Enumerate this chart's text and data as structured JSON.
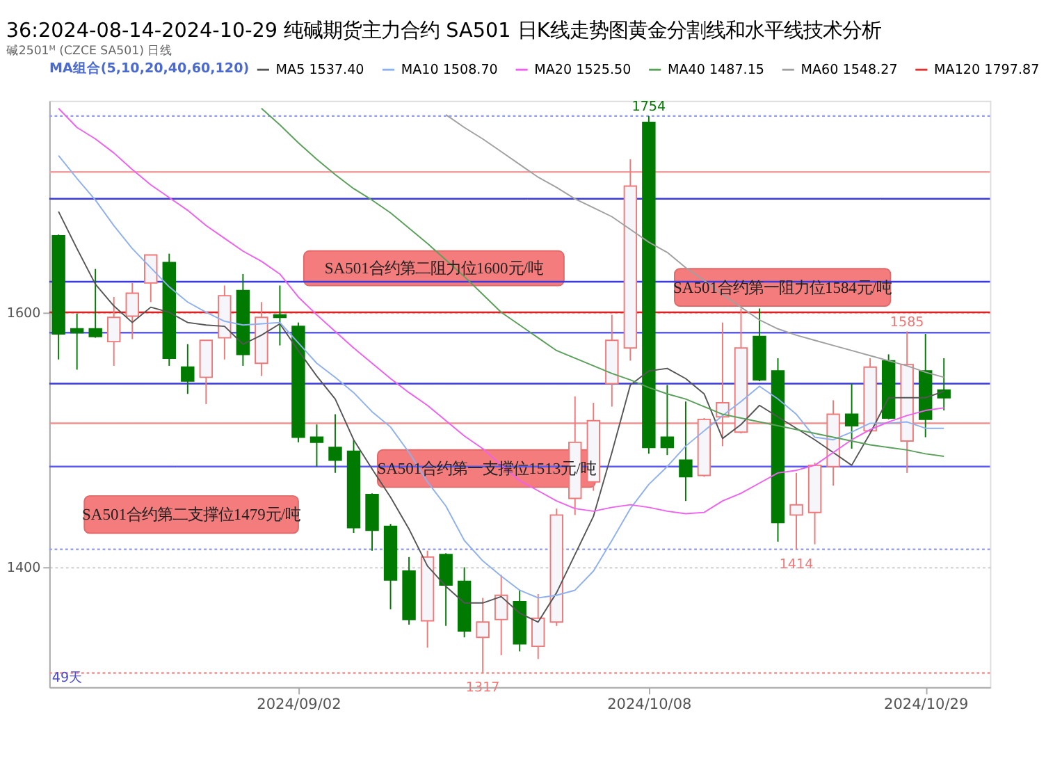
{
  "chart_data": {
    "type": "candlestick",
    "title": "36:2024-08-14-2024-10-29 纯碱期货主力合约 SA501 日K线走势图黄金分割线和水平线技术分析",
    "subtitle": "碱2501ᴹ (CZCE SA501) 日线",
    "categories": [
      null,
      null,
      null,
      null,
      null,
      null,
      null,
      null,
      null,
      null,
      null,
      null,
      null,
      "2024/09/02",
      null,
      null,
      null,
      null,
      null,
      null,
      null,
      null,
      null,
      null,
      null,
      null,
      null,
      null,
      null,
      null,
      null,
      null,
      "2024/10/08",
      null,
      null,
      null,
      null,
      null,
      null,
      null,
      null,
      null,
      null,
      null,
      null,
      null,
      null,
      "2024/10/29",
      null
    ],
    "ohlc": [
      [
        1660,
        1661,
        1563,
        1583
      ],
      [
        1587,
        1599,
        1555,
        1584
      ],
      [
        1587,
        1634,
        1580,
        1581
      ],
      [
        1577,
        1612,
        1558,
        1596
      ],
      [
        1597,
        1623,
        1579,
        1615
      ],
      [
        1623,
        1645,
        1608,
        1645
      ],
      [
        1639,
        1646,
        1558,
        1564
      ],
      [
        1557,
        1575,
        1536,
        1546
      ],
      [
        1549,
        1578,
        1528,
        1578
      ],
      [
        1580,
        1621,
        1563,
        1613
      ],
      [
        1617,
        1630,
        1558,
        1567
      ],
      [
        1560,
        1608,
        1550,
        1596
      ],
      [
        1598,
        1621,
        1574,
        1596
      ],
      [
        1589,
        1592,
        1498,
        1502
      ],
      [
        1502,
        1512,
        1479,
        1498
      ],
      [
        1494,
        1520,
        1474,
        1484
      ],
      [
        1491,
        1500,
        1427,
        1431
      ],
      [
        1457,
        1458,
        1413,
        1429
      ],
      [
        1432,
        1434,
        1367,
        1390
      ],
      [
        1397,
        1408,
        1355,
        1359
      ],
      [
        1358,
        1413,
        1337,
        1408
      ],
      [
        1410,
        1411,
        1354,
        1386
      ],
      [
        1389,
        1400,
        1345,
        1350
      ],
      [
        1345,
        1376,
        1317,
        1357
      ],
      [
        1359,
        1394,
        1331,
        1378
      ],
      [
        1373,
        1382,
        1334,
        1340
      ],
      [
        1338,
        1379,
        1328,
        1360
      ],
      [
        1357,
        1446,
        1354,
        1441
      ],
      [
        1454,
        1534,
        1441,
        1498
      ],
      [
        1467,
        1529,
        1460,
        1515
      ],
      [
        1544,
        1598,
        1526,
        1578
      ],
      [
        1572,
        1720,
        1562,
        1699
      ],
      [
        1749,
        1754,
        1489,
        1494
      ],
      [
        1502,
        1543,
        1488,
        1494
      ],
      [
        1484,
        1530,
        1452,
        1471
      ],
      [
        1472,
        1517,
        1471,
        1516
      ],
      [
        1518,
        1592,
        1495,
        1529
      ],
      [
        1506,
        1603,
        1505,
        1572
      ],
      [
        1581,
        1603,
        1546,
        1547
      ],
      [
        1554,
        1564,
        1420,
        1435
      ],
      [
        1441,
        1474,
        1414,
        1449
      ],
      [
        1443,
        1482,
        1418,
        1480
      ],
      [
        1479,
        1531,
        1464,
        1520
      ],
      [
        1520,
        1544,
        1493,
        1511
      ],
      [
        1507,
        1564,
        1506,
        1557
      ],
      [
        1562,
        1567,
        1516,
        1517
      ],
      [
        1499,
        1585,
        1474,
        1559
      ],
      [
        1554,
        1583,
        1502,
        1516
      ],
      [
        1539,
        1564,
        1523,
        1533
      ]
    ],
    "colors": [
      "#007a00",
      "#007a00",
      "#007a00",
      "#f07878",
      "#f07878",
      "#f07878",
      "#007a00",
      "#007a00",
      "#f07878",
      "#f07878",
      "#007a00",
      "#f07878",
      "#007a00",
      "#007a00",
      "#007a00",
      "#007a00",
      "#007a00",
      "#007a00",
      "#007a00",
      "#007a00",
      "#f07878",
      "#007a00",
      "#007a00",
      "#f07878",
      "#f07878",
      "#007a00",
      "#f07878",
      "#f07878",
      "#f07878",
      "#f07878",
      "#f07878",
      "#f07878",
      "#007a00",
      "#007a00",
      "#007a00",
      "#f07878",
      "#f07878",
      "#f07878",
      "#007a00",
      "#007a00",
      "#f07878",
      "#f07878",
      "#f07878",
      "#007a00",
      "#f07878",
      "#007a00",
      "#f07878",
      "#007a00",
      "#007a00"
    ],
    "series": [
      {
        "name": "MA5 1537.40",
        "type": "line",
        "color": "#555555",
        "values": [
          1679,
          1650,
          1622,
          1605,
          1592,
          1604,
          1600,
          1592,
          1590,
          1589,
          1575,
          1582,
          1591,
          1570,
          1550,
          1532,
          1500,
          1477,
          1455,
          1430,
          1401,
          1385,
          1372,
          1372,
          1377,
          1364,
          1357,
          1380,
          1410,
          1440,
          1490,
          1543,
          1554,
          1556,
          1548,
          1536,
          1501,
          1512,
          1527,
          1518,
          1509,
          1500,
          1490,
          1480,
          1505,
          1533,
          1533,
          1533,
          1538
        ]
      },
      {
        "name": "MA10 1508.70",
        "type": "line",
        "color": "#8fb0f0",
        "values": [
          1723,
          1705,
          1688,
          1668,
          1650,
          1635,
          1620,
          1608,
          1600,
          1593,
          1590,
          1591,
          1592,
          1576,
          1560,
          1549,
          1537,
          1522,
          1510,
          1490,
          1467,
          1448,
          1421,
          1405,
          1393,
          1382,
          1376,
          1378,
          1382,
          1397,
          1421,
          1446,
          1465,
          1479,
          1495,
          1507,
          1519,
          1530,
          1542,
          1532,
          1520,
          1502,
          1500,
          1506,
          1513,
          1513,
          1514,
          1509,
          1509
        ]
      },
      {
        "name": "MA20 1525.50",
        "type": "line",
        "color": "#f060f0",
        "values": [
          1760,
          1745,
          1736,
          1725,
          1712,
          1700,
          1690,
          1680,
          1668,
          1658,
          1648,
          1640,
          1630,
          1612,
          1598,
          1585,
          1572,
          1560,
          1548,
          1537,
          1527,
          1515,
          1503,
          1493,
          1480,
          1468,
          1460,
          1452,
          1446,
          1444,
          1447,
          1449,
          1447,
          1444,
          1442,
          1443,
          1452,
          1458,
          1466,
          1474,
          1476,
          1480,
          1490,
          1500,
          1508,
          1514,
          1519,
          1523,
          1525
        ]
      },
      {
        "name": "MA40 1487.15",
        "type": "line",
        "color": "#5aa05a",
        "values": [
          null,
          null,
          null,
          null,
          null,
          null,
          null,
          null,
          null,
          null,
          null,
          1760,
          1747,
          1733,
          1720,
          1708,
          1697,
          1688,
          1678,
          1666,
          1654,
          1641,
          1628,
          1614,
          1600,
          1590,
          1580,
          1570,
          1564,
          1558,
          1552,
          1547,
          1541,
          1536,
          1532,
          1526,
          1520,
          1517,
          1514,
          1511,
          1508,
          1505,
          1502,
          1499,
          1496,
          1494,
          1492,
          1489,
          1487
        ]
      },
      {
        "name": "MA60 1548.27",
        "type": "line",
        "color": "#a0a0a0",
        "values": [
          null,
          null,
          null,
          null,
          null,
          null,
          null,
          null,
          null,
          null,
          null,
          null,
          null,
          null,
          null,
          null,
          null,
          null,
          null,
          null,
          null,
          1755,
          1745,
          1736,
          1726,
          1716,
          1706,
          1698,
          1689,
          1682,
          1675,
          1665,
          1655,
          1647,
          1635,
          1625,
          1614,
          1604,
          1594,
          1587,
          1582,
          1578,
          1574,
          1570,
          1566,
          1562,
          1558,
          1553,
          1549
        ]
      },
      {
        "name": "MA120 1797.87",
        "type": "line",
        "color": "#e03030",
        "values": [
          null,
          null,
          null,
          null,
          null,
          null,
          null,
          null,
          null,
          null,
          null,
          null,
          null,
          null,
          null,
          null,
          null,
          null,
          null,
          null,
          null,
          null,
          null,
          null,
          null,
          null,
          null,
          null,
          null,
          null,
          null,
          null,
          null,
          null,
          null,
          null,
          null,
          null,
          null,
          null,
          null,
          null,
          null,
          null,
          null,
          null,
          null,
          null,
          null
        ]
      }
    ],
    "legend_title": "MA组合(5,10,20,40,60,120)",
    "legend": "top",
    "ylim": [
      1306,
      1766
    ],
    "yticks": [
      1400,
      1600
    ],
    "grid": "y",
    "ref_lines": [
      {
        "axis": "y",
        "value": 1754,
        "color": "#9aa0f0",
        "line_style": "dotted"
      },
      {
        "axis": "y",
        "value": 1710,
        "color": "#f4a0a0"
      },
      {
        "axis": "y",
        "value": 1689,
        "color": "#3a3ae0"
      },
      {
        "axis": "y",
        "value": 1624,
        "color": "#3a3ae0"
      },
      {
        "axis": "y",
        "value": 1600,
        "color": "#e02020",
        "label": "SA501合约第二阻力位1600元/吨"
      },
      {
        "axis": "y",
        "value": 1584,
        "color": "#5a5af0",
        "label": "SA501合约第一阻力位1584元/吨"
      },
      {
        "axis": "y",
        "value": 1544,
        "color": "#3a3ae0"
      },
      {
        "axis": "y",
        "value": 1513,
        "color": "#f09090",
        "label": "SA501合约第一支撑位1513元/吨"
      },
      {
        "axis": "y",
        "value": 1479,
        "color": "#5a5af0",
        "label": "SA501合约第二支撑位1479元/吨"
      },
      {
        "axis": "y",
        "value": 1414,
        "color": "#9aa0f0",
        "line_style": "dotted"
      },
      {
        "axis": "y",
        "value": 1317,
        "color": "#f09090",
        "line_style": "dotted"
      }
    ],
    "annotations": [
      {
        "text": "1754",
        "y": 1754
      },
      {
        "text": "1317",
        "y": 1317
      },
      {
        "text": "1414",
        "y": 1414
      },
      {
        "text": "1585",
        "y": 1585
      },
      "49天"
    ]
  }
}
